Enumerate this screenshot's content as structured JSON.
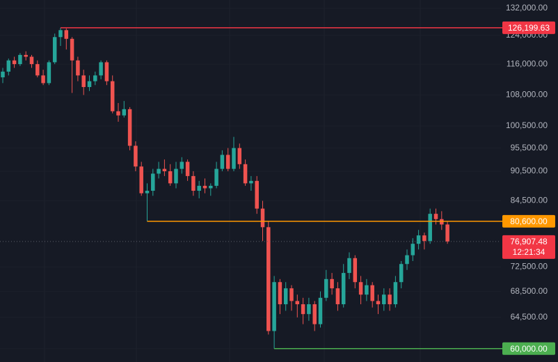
{
  "chart_data": {
    "type": "candlestick",
    "log_scale": true,
    "up_color": "#26a69a",
    "down_color": "#ef5350",
    "ylim": [
      58170,
      134580
    ],
    "yticks": [
      {
        "value": 132000,
        "label": "132,000.00"
      },
      {
        "value": 124000,
        "label": "124,000.00"
      },
      {
        "value": 116000,
        "label": "116,000.00"
      },
      {
        "value": 108000,
        "label": "108,000.00"
      },
      {
        "value": 100500,
        "label": "100,500.00"
      },
      {
        "value": 95500,
        "label": "95,500.00"
      },
      {
        "value": 90500,
        "label": "90,500.00"
      },
      {
        "value": 84500,
        "label": "84,500.00"
      },
      {
        "value": 72500,
        "label": "72,500.00"
      },
      {
        "value": 68500,
        "label": "68,500.00"
      },
      {
        "value": 64500,
        "label": "64,500.00"
      },
      {
        "value": 60000,
        "label": "60,000.00"
      }
    ],
    "candles": [
      [
        112500,
        115000,
        111000,
        114000
      ],
      [
        114000,
        117500,
        113000,
        117000
      ],
      [
        117000,
        118000,
        115000,
        116000
      ],
      [
        116000,
        119000,
        115500,
        118500
      ],
      [
        118500,
        119500,
        117000,
        118000
      ],
      [
        118000,
        118500,
        115000,
        116000
      ],
      [
        116000,
        117000,
        112500,
        113000
      ],
      [
        113000,
        114500,
        110500,
        111000
      ],
      [
        111000,
        117000,
        110500,
        116500
      ],
      [
        116500,
        124500,
        116000,
        123500
      ],
      [
        123500,
        126199.63,
        121000,
        125500
      ],
      [
        125500,
        126000,
        120000,
        123000
      ],
      [
        123000,
        123500,
        108500,
        117000
      ],
      [
        117000,
        118000,
        111500,
        113000
      ],
      [
        113000,
        114500,
        108000,
        110000
      ],
      [
        110000,
        113000,
        109000,
        111500
      ],
      [
        111500,
        114000,
        110500,
        113000
      ],
      [
        113000,
        117000,
        112000,
        116500
      ],
      [
        116500,
        117000,
        110500,
        111500
      ],
      [
        111500,
        113000,
        103500,
        104000
      ],
      [
        104000,
        106000,
        101500,
        103000
      ],
      [
        103000,
        106500,
        102500,
        104500
      ],
      [
        104500,
        105000,
        95000,
        96000
      ],
      [
        96000,
        97000,
        90500,
        91500
      ],
      [
        91500,
        92500,
        85500,
        86000
      ],
      [
        86000,
        88000,
        80600,
        86500
      ],
      [
        86500,
        91000,
        85500,
        90000
      ],
      [
        90000,
        92500,
        89000,
        91000
      ],
      [
        91000,
        93000,
        89500,
        90500
      ],
      [
        90500,
        92000,
        87500,
        88000
      ],
      [
        88000,
        92500,
        87000,
        91000
      ],
      [
        91000,
        93500,
        90000,
        92500
      ],
      [
        92500,
        93000,
        88500,
        89500
      ],
      [
        89500,
        90500,
        85500,
        86500
      ],
      [
        86500,
        88500,
        85000,
        87500
      ],
      [
        87500,
        89000,
        86000,
        87000
      ],
      [
        87000,
        88000,
        85500,
        87500
      ],
      [
        87500,
        92500,
        87000,
        91000
      ],
      [
        91000,
        95000,
        90500,
        94000
      ],
      [
        94000,
        95500,
        90500,
        91000
      ],
      [
        91000,
        98000,
        90500,
        95500
      ],
      [
        95500,
        96500,
        91000,
        92000
      ],
      [
        92000,
        93000,
        87500,
        88000
      ],
      [
        88000,
        89500,
        86500,
        88500
      ],
      [
        88500,
        89500,
        82000,
        83000
      ],
      [
        83000,
        84500,
        77000,
        79500
      ],
      [
        79500,
        80600,
        62000,
        62500
      ],
      [
        62500,
        71000,
        60000,
        70000
      ],
      [
        70000,
        70500,
        65000,
        66500
      ],
      [
        66500,
        70000,
        65500,
        69000
      ],
      [
        69000,
        69500,
        65500,
        67000
      ],
      [
        67000,
        68000,
        64500,
        66500
      ],
      [
        66500,
        67500,
        63500,
        65000
      ],
      [
        65000,
        67500,
        64000,
        66500
      ],
      [
        66500,
        67000,
        62500,
        63500
      ],
      [
        63500,
        68500,
        63000,
        67500
      ],
      [
        67500,
        72000,
        67000,
        70500
      ],
      [
        70500,
        71500,
        68000,
        69000
      ],
      [
        69000,
        70000,
        65500,
        66500
      ],
      [
        66500,
        73000,
        66000,
        71500
      ],
      [
        71500,
        75000,
        70500,
        74000
      ],
      [
        74000,
        74500,
        69000,
        70000
      ],
      [
        70000,
        71000,
        66500,
        68000
      ],
      [
        68000,
        70500,
        67000,
        69500
      ],
      [
        69500,
        70000,
        66000,
        67000
      ],
      [
        67000,
        68000,
        65000,
        66500
      ],
      [
        66500,
        69000,
        65500,
        68000
      ],
      [
        68000,
        69000,
        65500,
        66500
      ],
      [
        66500,
        71000,
        66000,
        70000
      ],
      [
        70000,
        73500,
        69000,
        73000
      ],
      [
        73000,
        75500,
        72000,
        74500
      ],
      [
        74500,
        77500,
        73500,
        76500
      ],
      [
        76500,
        79000,
        75500,
        78000
      ],
      [
        78000,
        78500,
        75500,
        77000
      ],
      [
        77000,
        83000,
        76500,
        82000
      ],
      [
        82000,
        83000,
        80000,
        81000
      ],
      [
        81000,
        82500,
        79000,
        80000
      ],
      [
        80000,
        80500,
        76500,
        76907.48
      ]
    ],
    "levels": [
      {
        "value": 126199.63,
        "label": "126,199.63",
        "color": "#f23645"
      },
      {
        "value": 80600,
        "label": "80,600.00",
        "color": "#ff9800"
      },
      {
        "value": 60000,
        "label": "60,000.00",
        "color": "#4caf50"
      }
    ],
    "last_price": {
      "value": 76907.48,
      "label": "76,907.48",
      "countdown": "12:21:34",
      "color": "#f23645"
    }
  }
}
